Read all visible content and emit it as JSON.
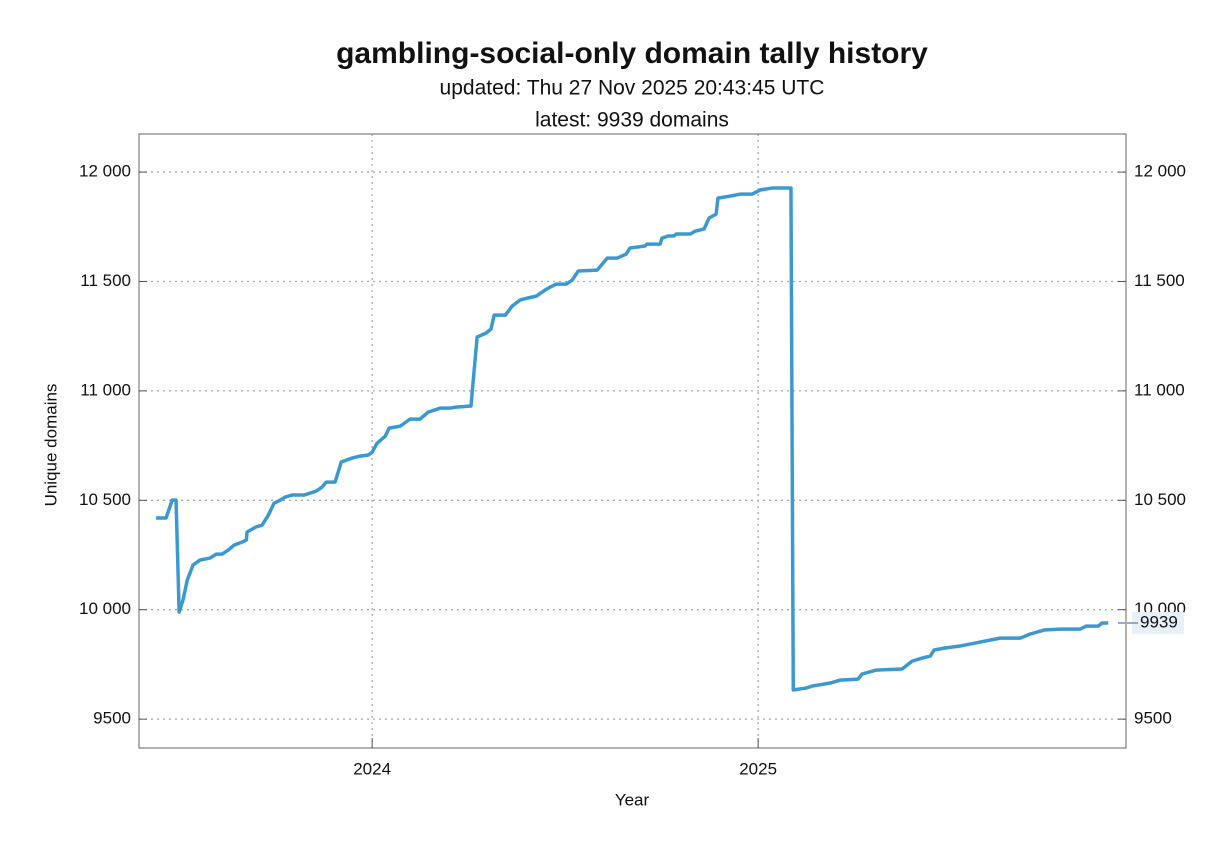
{
  "chart_data": {
    "type": "line",
    "title": "gambling-social-only domain tally history",
    "subtitle": [
      "updated: Thu 27 Nov 2025 20:43:45 UTC",
      "latest: 9939 domains"
    ],
    "x_label": "Year",
    "y_label": "Unique domains",
    "xlim": [
      2023.396,
      2025.953
    ],
    "xticks": [
      2024,
      2025
    ],
    "ylim": [
      9368,
      12174
    ],
    "yticks": [
      9500,
      {
        "value": 10000,
        "label": "10 000"
      },
      {
        "value": 10500,
        "label": "10 500"
      },
      {
        "value": 11000,
        "label": "11 000"
      },
      {
        "value": 11500,
        "label": "11 500"
      },
      {
        "value": 12000,
        "label": "12 000"
      }
    ],
    "grid": true,
    "annotation": {
      "text": "9939",
      "y": 9939
    },
    "series": [
      {
        "color": "#3c99cf",
        "x": [
          2023.44,
          2023.466,
          2023.482,
          2023.492,
          2023.5,
          2023.51,
          2023.521,
          2023.536,
          2023.554,
          2023.58,
          2023.596,
          2023.611,
          2023.627,
          2023.642,
          2023.663,
          2023.674,
          2023.676,
          2023.699,
          2023.715,
          2023.731,
          2023.746,
          2023.762,
          2023.775,
          2023.793,
          2023.824,
          2023.855,
          2023.87,
          2023.881,
          2023.904,
          2023.92,
          2023.948,
          2023.969,
          2023.99,
          2024.0,
          2024.013,
          2024.034,
          2024.044,
          2024.073,
          2024.098,
          2024.124,
          2024.145,
          2024.176,
          2024.202,
          2024.218,
          2024.256,
          2024.272,
          2024.295,
          2024.308,
          2024.316,
          2024.345,
          2024.363,
          2024.383,
          2024.402,
          2024.425,
          2024.448,
          2024.461,
          2024.477,
          2024.503,
          2024.518,
          2024.534,
          2024.583,
          2024.609,
          2024.635,
          2024.658,
          2024.668,
          2024.707,
          2024.712,
          2024.746,
          2024.751,
          2024.767,
          2024.782,
          2024.788,
          2024.824,
          2024.837,
          2024.86,
          2024.873,
          2024.891,
          2024.896,
          2024.927,
          2024.953,
          2024.984,
          2025.005,
          2025.036,
          2025.085,
          2025.091,
          2025.124,
          2025.14,
          2025.187,
          2025.212,
          2025.259,
          2025.269,
          2025.306,
          2025.373,
          2025.399,
          2025.425,
          2025.446,
          2025.456,
          2025.484,
          2025.523,
          2025.549,
          2025.575,
          2025.627,
          2025.679,
          2025.705,
          2025.741,
          2025.782,
          2025.834,
          2025.85,
          2025.881,
          2025.891,
          2025.907
        ],
        "values": [
          10419,
          10419,
          10501,
          10501,
          9989,
          10044,
          10135,
          10204,
          10227,
          10236,
          10254,
          10254,
          10272,
          10295,
          10309,
          10318,
          10355,
          10378,
          10387,
          10432,
          10487,
          10501,
          10515,
          10524,
          10524,
          10542,
          10560,
          10583,
          10583,
          10675,
          10693,
          10702,
          10707,
          10720,
          10761,
          10793,
          10830,
          10839,
          10871,
          10871,
          10903,
          10921,
          10921,
          10926,
          10931,
          11246,
          11264,
          11283,
          11346,
          11346,
          11388,
          11415,
          11424,
          11433,
          11461,
          11474,
          11488,
          11488,
          11506,
          11548,
          11552,
          11607,
          11607,
          11625,
          11653,
          11662,
          11671,
          11671,
          11698,
          11708,
          11708,
          11717,
          11717,
          11730,
          11740,
          11790,
          11808,
          11881,
          11890,
          11899,
          11899,
          11918,
          11927,
          11927,
          9633,
          9642,
          9651,
          9665,
          9678,
          9683,
          9706,
          9724,
          9729,
          9765,
          9779,
          9788,
          9816,
          9825,
          9834,
          9843,
          9852,
          9870,
          9870,
          9889,
          9907,
          9911,
          9911,
          9925,
          9925,
          9939,
          9939
        ]
      }
    ]
  }
}
